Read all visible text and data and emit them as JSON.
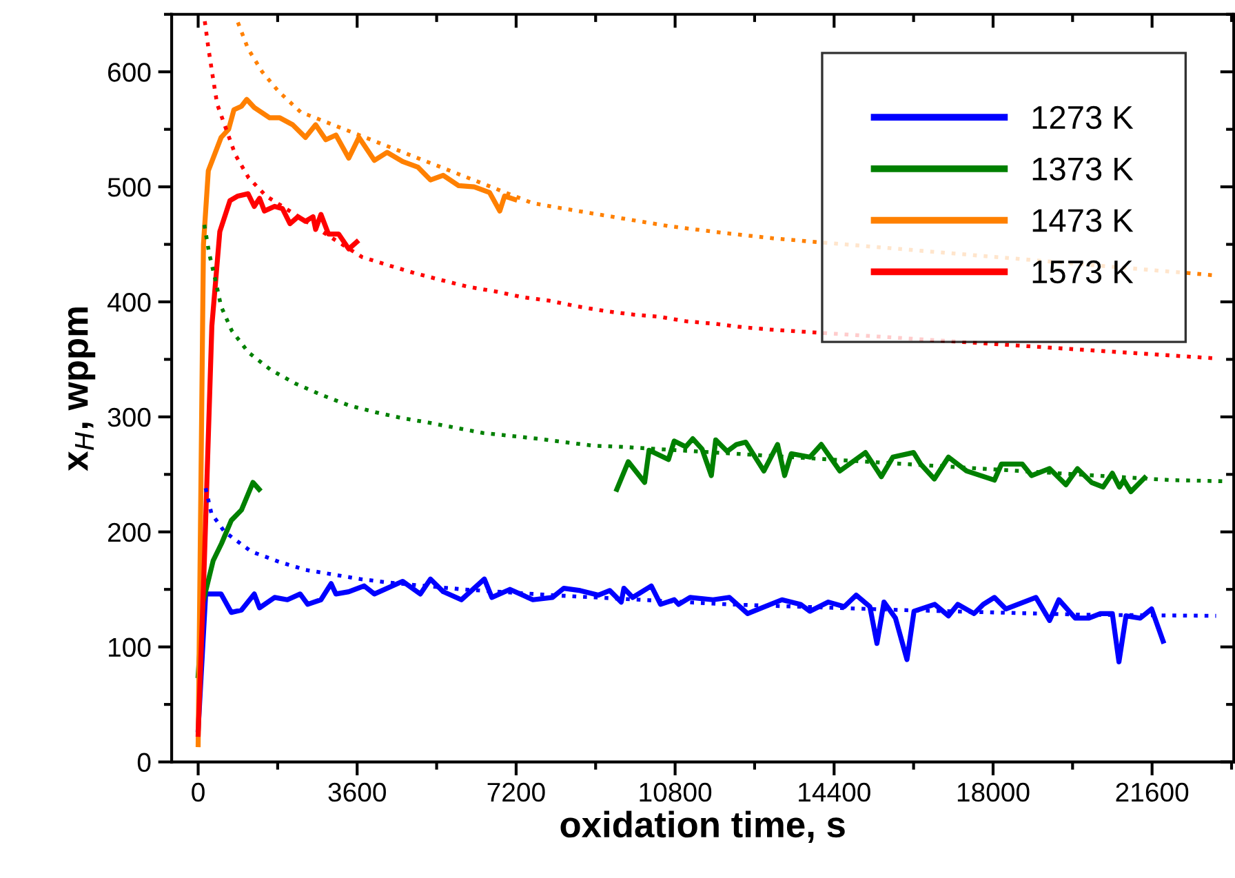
{
  "chart_data": {
    "type": "line",
    "xlabel": "oxidation time, s",
    "ylabel": "x$_{H}$, wppm",
    "xlim": [
      -600,
      23450
    ],
    "xticks": [
      0,
      3600,
      7200,
      10800,
      14400,
      18000,
      21600
    ],
    "ylim": [
      0,
      650
    ],
    "yticks": [
      0,
      100,
      200,
      300,
      400,
      500,
      600
    ],
    "grid": false,
    "legend": "top right",
    "marker": "none",
    "series": [
      {
        "name": "1273 K",
        "color": "#0000ff",
        "line_style": "solid",
        "x": [
          0,
          170,
          520,
          750,
          980,
          1270,
          1390,
          1730,
          2020,
          2310,
          2480,
          2780,
          3010,
          3120,
          3410,
          3760,
          3990,
          4630,
          5030,
          5260,
          5550,
          5960,
          6480,
          6650,
          7060,
          7580,
          8023,
          8280,
          8650,
          9060,
          9320,
          9580,
          9640,
          9840,
          10260,
          10470,
          10780,
          10880,
          11140,
          11660,
          12030,
          12440,
          12700,
          13220,
          13640,
          13850,
          14270,
          14630,
          14900,
          15210,
          15370,
          15530,
          15790,
          16050,
          16210,
          16680,
          16990,
          17200,
          17570,
          17780,
          18030,
          18290,
          18970,
          19280,
          19490,
          19860,
          20170,
          20430,
          20700,
          20850,
          21010,
          21330,
          21590,
          21850
        ],
        "values": [
          28,
          146,
          146,
          130,
          132,
          146,
          134,
          143,
          141,
          146,
          137,
          141,
          155,
          146,
          148,
          153,
          146,
          157,
          146,
          159,
          148,
          141,
          159,
          143,
          150,
          141,
          143,
          151,
          149,
          145,
          149,
          139,
          151,
          143,
          153,
          137,
          141,
          137,
          143,
          141,
          143,
          129,
          133,
          141,
          137,
          131,
          139,
          135,
          145,
          135,
          103,
          139,
          125,
          89,
          131,
          137,
          127,
          137,
          129,
          137,
          143,
          133,
          143,
          123,
          141,
          125,
          125,
          129,
          129,
          87,
          127,
          125,
          133,
          105
        ]
      },
      {
        "color": "#0000ff",
        "line_style": "dotted",
        "x": [
          170,
          300,
          600,
          1200,
          1830,
          2430,
          3670,
          4300,
          6000,
          8000,
          10000,
          12000,
          14400,
          16000,
          18000,
          20000,
          23050
        ],
        "values": [
          238,
          216,
          200,
          183,
          174,
          167,
          159,
          156,
          150,
          145,
          141,
          137,
          134,
          132,
          130,
          128,
          127
        ]
      },
      {
        "name": "1373 K",
        "color": "#008000",
        "line_style": "solid",
        "x": [
          0,
          110,
          340,
          530,
          750,
          980,
          1240,
          1380
        ],
        "values": [
          75,
          139,
          175,
          190,
          210,
          219,
          243,
          237
        ]
      },
      {
        "color": "#008000",
        "line_style": "solid",
        "x": [
          9480,
          9740,
          10110,
          10210,
          10650,
          10780,
          11040,
          11200,
          11410,
          11620,
          11720,
          11980,
          12190,
          12400,
          12810,
          13120,
          13280,
          13430,
          13850,
          14110,
          14530,
          15110,
          15470,
          15730,
          16200,
          16360,
          16670,
          16990,
          17400,
          18030,
          18190,
          18660,
          18870,
          19280,
          19650,
          19910,
          20230,
          20490,
          20700,
          20860,
          20960,
          21120,
          21430
        ],
        "values": [
          237,
          261,
          243,
          271,
          263,
          279,
          274,
          281,
          272,
          249,
          280,
          270,
          276,
          278,
          253,
          276,
          249,
          268,
          265,
          276,
          253,
          269,
          248,
          265,
          269,
          259,
          246,
          265,
          253,
          245,
          259,
          259,
          249,
          255,
          241,
          255,
          243,
          239,
          251,
          239,
          245,
          235,
          247
        ]
      },
      {
        "color": "#008000",
        "line_style": "dotted",
        "x": [
          140,
          250,
          390,
          520,
          760,
          1140,
          1640,
          2200,
          2800,
          3410,
          4020,
          4610,
          5220,
          6450,
          7700,
          8310,
          8930,
          9560,
          22040,
          23280
        ],
        "values": [
          467,
          442,
          419,
          396,
          375,
          356,
          341,
          329,
          319,
          310,
          304,
          299,
          295,
          286,
          281,
          278,
          275,
          274,
          245,
          244
        ]
      },
      {
        "name": "1473 K",
        "color": "#ff8000",
        "line_style": "solid",
        "x": [
          0,
          120,
          230,
          520,
          690,
          810,
          980,
          1100,
          1270,
          1620,
          1850,
          2140,
          2430,
          2660,
          2890,
          3120,
          3410,
          3640,
          3990,
          4280,
          4630,
          4980,
          5260,
          5550,
          5900,
          6250,
          6600,
          6830,
          6940,
          7170
        ],
        "values": [
          15,
          450,
          514,
          543,
          550,
          567,
          570,
          576,
          569,
          560,
          560,
          554,
          543,
          554,
          541,
          545,
          525,
          543,
          523,
          530,
          522,
          517,
          506,
          510,
          501,
          500,
          495,
          479,
          492,
          489
        ]
      },
      {
        "color": "#ff8000",
        "line_style": "dotted",
        "x": [
          900,
          1130,
          1450,
          1820,
          2320,
          7560,
          8130,
          9380,
          10630,
          11880,
          13080,
          23040
        ],
        "values": [
          643,
          620,
          600,
          583,
          565,
          486,
          482,
          474,
          466,
          460,
          455,
          423
        ]
      },
      {
        "name": "1573 K",
        "color": "#ff0000",
        "line_style": "solid",
        "x": [
          0,
          140,
          310,
          490,
          720,
          900,
          1130,
          1270,
          1390,
          1500,
          1730,
          1910,
          2080,
          2260,
          2430,
          2600,
          2660,
          2780,
          2950,
          3180,
          3410,
          3590
        ],
        "values": [
          24,
          174,
          379,
          461,
          488,
          492,
          494,
          483,
          490,
          479,
          483,
          481,
          468,
          474,
          470,
          474,
          463,
          476,
          459,
          459,
          446,
          452
        ]
      },
      {
        "color": "#ff0000",
        "line_style": "dotted",
        "x": [
          150,
          230,
          330,
          430,
          840,
          1140,
          1540,
          3710,
          4290,
          4900,
          5500,
          6120,
          6740,
          7350,
          7950,
          8590,
          9220,
          9840,
          10450,
          11070,
          11690,
          12320,
          12920,
          22990
        ],
        "values": [
          644,
          621,
          596,
          572,
          528,
          508,
          492,
          439,
          432,
          425,
          419,
          413,
          409,
          404,
          401,
          396,
          392,
          389,
          387,
          383,
          381,
          378,
          376,
          351
        ]
      }
    ]
  }
}
